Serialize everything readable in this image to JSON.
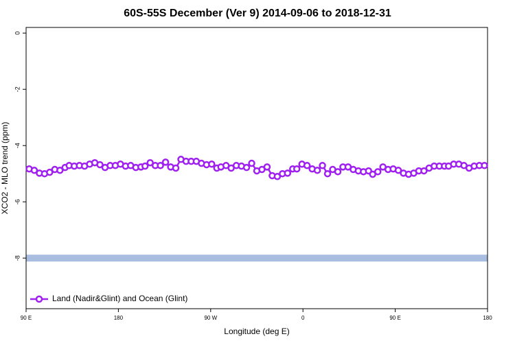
{
  "chart_data": {
    "type": "line",
    "title": "60S-55S December (Ver 9)   2014-09-06 to 2018-12-31",
    "x_label": "Longitude (deg E)",
    "y_label": "XCO2 - MLO trend (ppm)",
    "xlim": [
      90,
      540
    ],
    "ylim": [
      -9.8,
      0.2
    ],
    "xticks": [
      {
        "value": 90,
        "label": "90 E"
      },
      180,
      {
        "value": 270,
        "label": "90 W"
      },
      {
        "value": 360,
        "label": "0"
      },
      {
        "value": 450,
        "label": "90 E"
      },
      {
        "value": 540,
        "label": "180"
      }
    ],
    "yticks": [
      0,
      -2,
      -4,
      -6,
      -8
    ],
    "reference_line": {
      "value": -8,
      "color": "#a8bde0"
    },
    "legend": "bottom-left",
    "x": [
      93,
      98,
      103,
      108,
      113,
      118,
      123,
      128,
      132,
      137,
      142,
      147,
      152,
      157,
      162,
      167,
      172,
      177,
      182,
      187,
      192,
      197,
      202,
      206,
      211,
      216,
      221,
      226,
      231,
      236,
      241,
      246,
      251,
      256,
      261,
      266,
      271,
      276,
      280,
      285,
      290,
      295,
      300,
      305,
      310,
      315,
      320,
      325,
      330,
      335,
      340,
      345,
      350,
      354,
      359,
      364,
      369,
      374,
      379,
      384,
      389,
      394,
      399,
      404,
      409,
      414,
      419,
      424,
      428,
      433,
      438,
      443,
      448,
      453,
      458,
      463,
      468,
      473,
      478,
      483,
      488,
      493,
      498,
      502,
      507,
      512,
      517,
      522,
      527,
      532,
      537
    ],
    "series": [
      {
        "name": "Land (Nadir&Glint) and Ocean (Glint)",
        "color": "#a020f0",
        "values": [
          -4.83,
          -4.88,
          -4.98,
          -5.0,
          -4.95,
          -4.85,
          -4.88,
          -4.78,
          -4.71,
          -4.73,
          -4.71,
          -4.73,
          -4.66,
          -4.61,
          -4.68,
          -4.78,
          -4.71,
          -4.71,
          -4.66,
          -4.73,
          -4.71,
          -4.78,
          -4.76,
          -4.73,
          -4.61,
          -4.71,
          -4.71,
          -4.59,
          -4.76,
          -4.8,
          -4.49,
          -4.56,
          -4.56,
          -4.56,
          -4.63,
          -4.68,
          -4.66,
          -4.8,
          -4.76,
          -4.71,
          -4.8,
          -4.71,
          -4.73,
          -4.78,
          -4.63,
          -4.9,
          -4.85,
          -4.76,
          -5.07,
          -5.1,
          -5.0,
          -4.98,
          -4.83,
          -4.83,
          -4.66,
          -4.71,
          -4.83,
          -4.88,
          -4.71,
          -5.0,
          -4.85,
          -4.93,
          -4.76,
          -4.76,
          -4.85,
          -4.9,
          -4.93,
          -4.9,
          -5.02,
          -4.93,
          -4.76,
          -4.85,
          -4.83,
          -4.88,
          -4.98,
          -5.02,
          -4.98,
          -4.9,
          -4.9,
          -4.8,
          -4.73,
          -4.73,
          -4.73,
          -4.73,
          -4.66,
          -4.66,
          -4.71,
          -4.8,
          -4.73,
          -4.71,
          -4.71
        ]
      }
    ]
  }
}
